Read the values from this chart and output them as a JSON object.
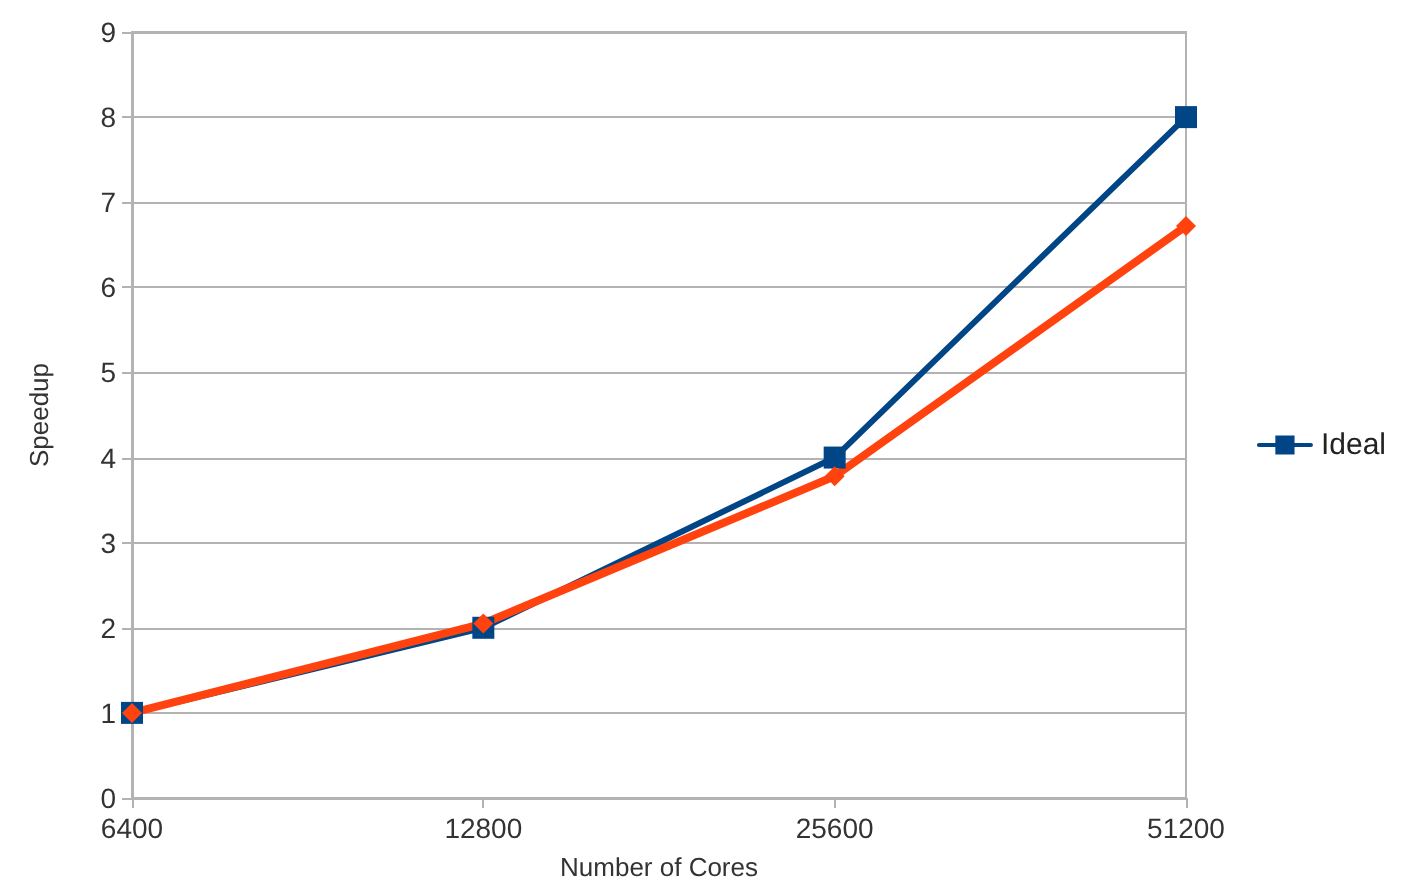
{
  "chart_data": {
    "type": "line",
    "xlabel": "Number of Cores",
    "ylabel": "Speedup",
    "categories": [
      "6400",
      "12800",
      "25600",
      "51200"
    ],
    "ylim": [
      0,
      9
    ],
    "yticks": [
      0,
      1,
      2,
      3,
      4,
      5,
      6,
      7,
      8,
      9
    ],
    "grid": "y",
    "legend": "right",
    "series": [
      {
        "name": "Ideal",
        "color": "#004586",
        "marker": "square",
        "values": [
          1,
          2,
          4,
          8
        ]
      },
      {
        "color": "#ff420e",
        "marker": "diamond",
        "values": [
          1,
          2.05,
          3.78,
          6.72
        ]
      }
    ]
  }
}
